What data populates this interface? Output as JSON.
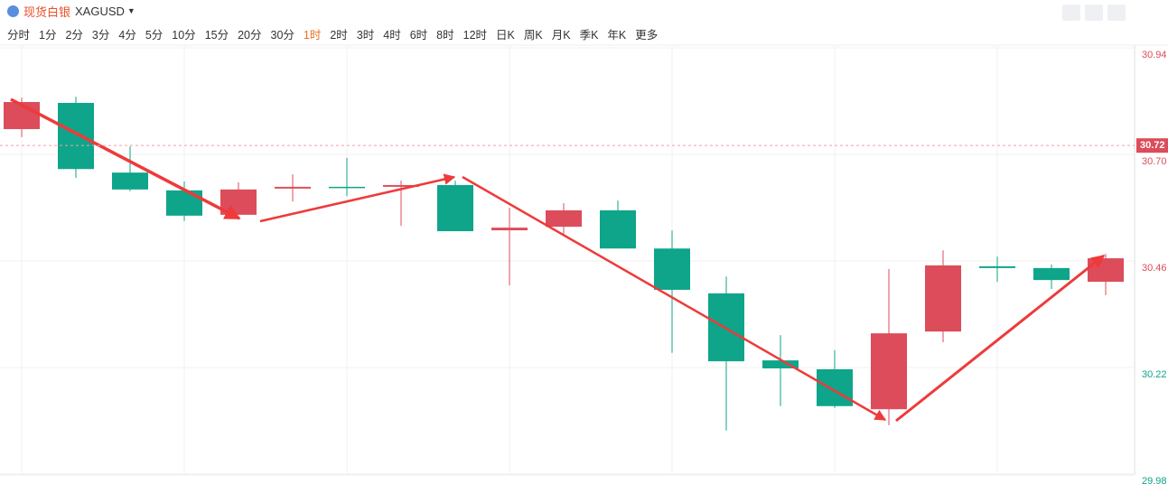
{
  "toolbar": {
    "title": "现货白银",
    "symbol": "XAGUSD",
    "periods": [
      {
        "label": "分时"
      },
      {
        "label": "1分"
      },
      {
        "label": "2分"
      },
      {
        "label": "3分"
      },
      {
        "label": "4分"
      },
      {
        "label": "5分"
      },
      {
        "label": "10分"
      },
      {
        "label": "15分"
      },
      {
        "label": "20分"
      },
      {
        "label": "30分"
      },
      {
        "label": "1时",
        "active": true
      },
      {
        "label": "2时"
      },
      {
        "label": "3时"
      },
      {
        "label": "4时"
      },
      {
        "label": "6时"
      },
      {
        "label": "8时"
      },
      {
        "label": "12时"
      },
      {
        "label": "日K"
      },
      {
        "label": "周K"
      },
      {
        "label": "月K"
      },
      {
        "label": "季K"
      },
      {
        "label": "年K"
      },
      {
        "label": "更多"
      }
    ]
  },
  "chart_data": {
    "type": "candlestick",
    "up_color": "#dc4c5a",
    "down_color": "#0ea58a",
    "open": [
      30.757,
      30.816,
      30.659,
      30.619,
      30.564,
      30.623,
      30.627,
      30.627,
      30.631,
      30.529,
      30.537,
      30.574,
      30.488,
      30.387,
      30.236,
      30.216,
      30.126,
      30.301,
      30.448,
      30.444,
      30.413
    ],
    "high": [
      30.828,
      30.83,
      30.718,
      30.639,
      30.637,
      30.655,
      30.692,
      30.641,
      30.641,
      30.58,
      30.59,
      30.596,
      30.529,
      30.425,
      30.293,
      30.259,
      30.442,
      30.484,
      30.47,
      30.452,
      30.476
    ],
    "low": [
      30.739,
      30.647,
      30.617,
      30.55,
      30.564,
      30.594,
      30.606,
      30.539,
      30.527,
      30.405,
      30.519,
      30.488,
      30.253,
      30.078,
      30.133,
      30.129,
      30.09,
      30.277,
      30.413,
      30.397,
      30.383
    ],
    "close": [
      30.818,
      30.667,
      30.621,
      30.562,
      30.621,
      30.627,
      30.625,
      30.631,
      30.527,
      30.535,
      30.574,
      30.488,
      30.395,
      30.234,
      30.218,
      30.133,
      30.297,
      30.45,
      30.444,
      30.417,
      30.466
    ],
    "ylim": [
      29.98,
      30.94
    ],
    "yticks": [
      30.94,
      {
        "value": 30.7,
        "label": "30.70"
      },
      30.46,
      30.22,
      29.98
    ],
    "ytick_colors": [
      "#dc4c5a",
      "#dc4c5a",
      "#dc4c5a",
      "#0ea58a",
      "#0ea58a"
    ],
    "current_price": 30.72,
    "grid": true
  }
}
